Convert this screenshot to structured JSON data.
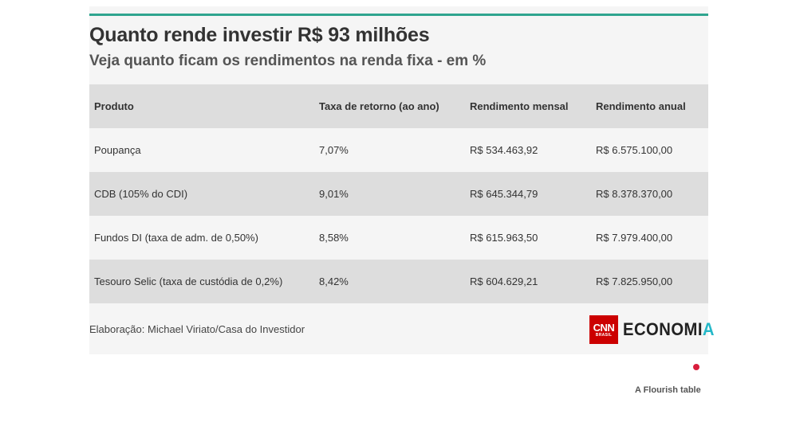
{
  "header": {
    "title": "Quanto rende investir R$ 93 milhões",
    "subtitle": "Veja quanto ficam os rendimentos na renda fixa - em %"
  },
  "table": {
    "columns": [
      "Produto",
      "Taxa de retorno (ao ano)",
      "Rendimento mensal",
      "Rendimento anual"
    ],
    "rows": [
      [
        "Poupança",
        "7,07%",
        "R$ 534.463,92",
        "R$ 6.575.100,00"
      ],
      [
        "CDB (105% do CDI)",
        "9,01%",
        "R$ 645.344,79",
        "R$ 8.378.370,00"
      ],
      [
        "Fundos DI (taxa de adm. de 0,50%)",
        "8,58%",
        "R$ 615.963,50",
        "R$ 7.979.400,00"
      ],
      [
        "Tesouro Selic (taxa de custódia de 0,2%)",
        "8,42%",
        "R$ 604.629,21",
        "R$ 7.825.950,00"
      ]
    ]
  },
  "footer": {
    "source": "Elaboração: Michael Viriato/Casa do Investidor",
    "logo": {
      "cnn_text": "CNN",
      "cnn_sub": "BRASIL",
      "economia_main": "ECONOMI",
      "economia_accent": "A"
    },
    "flourish_label": "A Flourish table"
  },
  "colors": {
    "accent_line": "#2fa58f",
    "header_row": "#dddddd",
    "card_bg": "#f5f5f5",
    "cnn_red": "#cc0000",
    "economia_accent": "#25b8c8",
    "flourish_dot": "#d81e3c"
  }
}
